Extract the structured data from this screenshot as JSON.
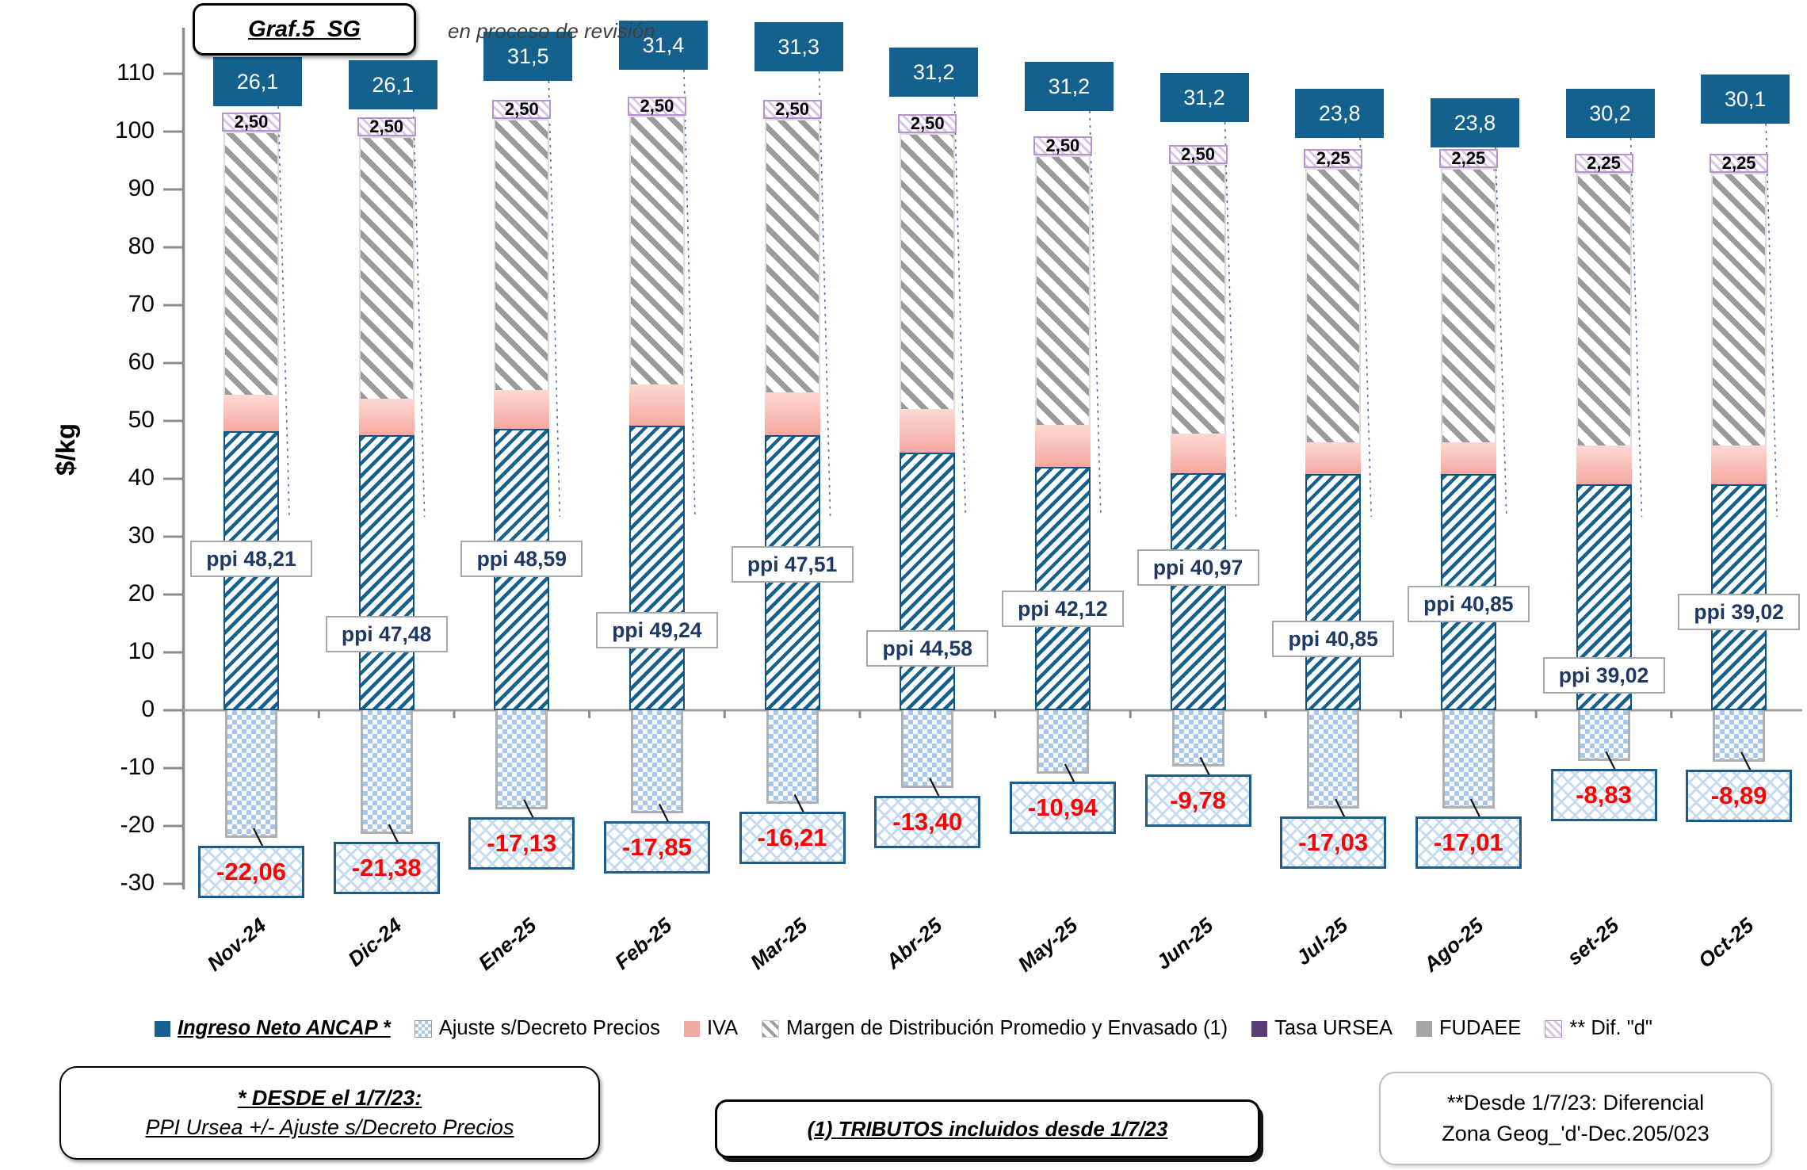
{
  "header": {
    "title": "Graf.5_SG",
    "revision_note": "en proceso de revisión"
  },
  "y_axis": {
    "label": "$/kg",
    "ticks": [
      110,
      100,
      90,
      80,
      70,
      60,
      50,
      40,
      30,
      20,
      10,
      0,
      -10,
      -20,
      -30
    ],
    "min": -30,
    "max": 110
  },
  "chart_data": {
    "type": "bar",
    "stacked": true,
    "title": "Graf.5_SG",
    "ylabel": "$/kg",
    "ylim": [
      -30,
      110
    ],
    "grid": false,
    "legend_position": "bottom",
    "categories": [
      "Nov-24",
      "Dic-24",
      "Ene-25",
      "Feb-25",
      "Mar-25",
      "Abr-25",
      "May-25",
      "Jun-25",
      "Jul-25",
      "Ago-25",
      "set-25",
      "Oct-25"
    ],
    "series": [
      {
        "name": "Ingreso Neto ANCAP *",
        "swatch": "sw-blue",
        "emphasis": true,
        "bar_top_values": [
          48.21,
          47.48,
          48.59,
          49.24,
          47.51,
          44.58,
          42.12,
          40.97,
          40.85,
          40.85,
          39.02,
          39.02
        ],
        "label_values": [
          26.1,
          26.1,
          31.5,
          31.4,
          31.3,
          31.2,
          31.2,
          31.2,
          23.8,
          23.8,
          30.2,
          30.1
        ]
      },
      {
        "name": "Ajuste s/Decreto Precios",
        "swatch": "sw-checker",
        "values": [
          -22.06,
          -21.38,
          -17.13,
          -17.85,
          -16.21,
          -13.4,
          -10.94,
          -9.78,
          -17.03,
          -17.01,
          -8.83,
          -8.89
        ]
      },
      {
        "name": "IVA",
        "swatch": "sw-pink",
        "heights": [
          6.3,
          6.3,
          6.7,
          7.0,
          7.4,
          7.5,
          7.2,
          6.9,
          5.5,
          5.5,
          6.8,
          6.8
        ]
      },
      {
        "name": "Margen de Distribución Promedio y Envasado (1)",
        "swatch": "sw-grayhatch",
        "heights": [
          45.5,
          45.4,
          46.9,
          46.5,
          47.3,
          47.6,
          46.6,
          46.5,
          47.3,
          47.3,
          47.1,
          47.1
        ]
      },
      {
        "name": "Tasa URSEA",
        "swatch": "sw-purple",
        "heights": [
          0,
          0,
          0,
          0,
          0,
          0,
          0,
          0,
          0,
          0,
          0,
          0
        ]
      },
      {
        "name": "FUDAEE",
        "swatch": "sw-gray",
        "heights": [
          0,
          0,
          0,
          0,
          0,
          0,
          0,
          0,
          0,
          0,
          0,
          0
        ]
      },
      {
        "name": "** Dif. \"d\"",
        "swatch": "sw-lav",
        "heights": [
          2.5,
          2.5,
          2.5,
          2.5,
          2.5,
          2.5,
          2.5,
          2.5,
          2.25,
          2.25,
          2.25,
          2.25
        ]
      }
    ],
    "labels": {
      "ingreso_neto": [
        "26,1",
        "26,1",
        "31,5",
        "31,4",
        "31,3",
        "31,2",
        "31,2",
        "31,2",
        "23,8",
        "23,8",
        "30,2",
        "30,1"
      ],
      "dif_d": [
        "2,50",
        "2,50",
        "2,50",
        "2,50",
        "2,50",
        "2,50",
        "2,50",
        "2,50",
        "2,25",
        "2,25",
        "2,25",
        "2,25"
      ],
      "ppi": [
        "ppi  48,21",
        "ppi  47,48",
        "ppi 48,59",
        "ppi 49,24",
        "ppi 47,51",
        "ppi 44,58",
        "ppi 42,12",
        "ppi 40,97",
        "ppi 40,85",
        "ppi 40,85",
        "ppi 39,02",
        "ppi 39,02"
      ],
      "ajuste": [
        "-22,06",
        "-21,38",
        "-17,13",
        "-17,85",
        "-16,21",
        "-13,40",
        "-10,94",
        "-9,78",
        "-17,03",
        "-17,01",
        "-8,83",
        "-8,89"
      ]
    }
  },
  "legend_note": "legend entries mirror chart_data.series names",
  "notes": {
    "note1_line1": "* DESDE el 1/7/23:",
    "note1_line2": "PPI Ursea +/- Ajuste s/Decreto Precios",
    "note2": "(1) TRIBUTOS incluidos desde 1/7/23",
    "note3_line1": "**Desde 1/7/23: Diferencial",
    "note3_line2": "Zona Geog_'d'-Dec.205/023"
  },
  "colors": {
    "blue": "#15618e",
    "navy": "#1f3864",
    "red": "#fe0000",
    "pink": "#f5a8a1",
    "checker_blue": "#a9c8e8",
    "hatch_gray": "#9b9b9b",
    "purple": "#5a3b76",
    "gray": "#a6a6a6",
    "lavender": "#b493cf",
    "axis_gray": "#8c8c8c",
    "leader_blue": "#4a6fa5"
  }
}
